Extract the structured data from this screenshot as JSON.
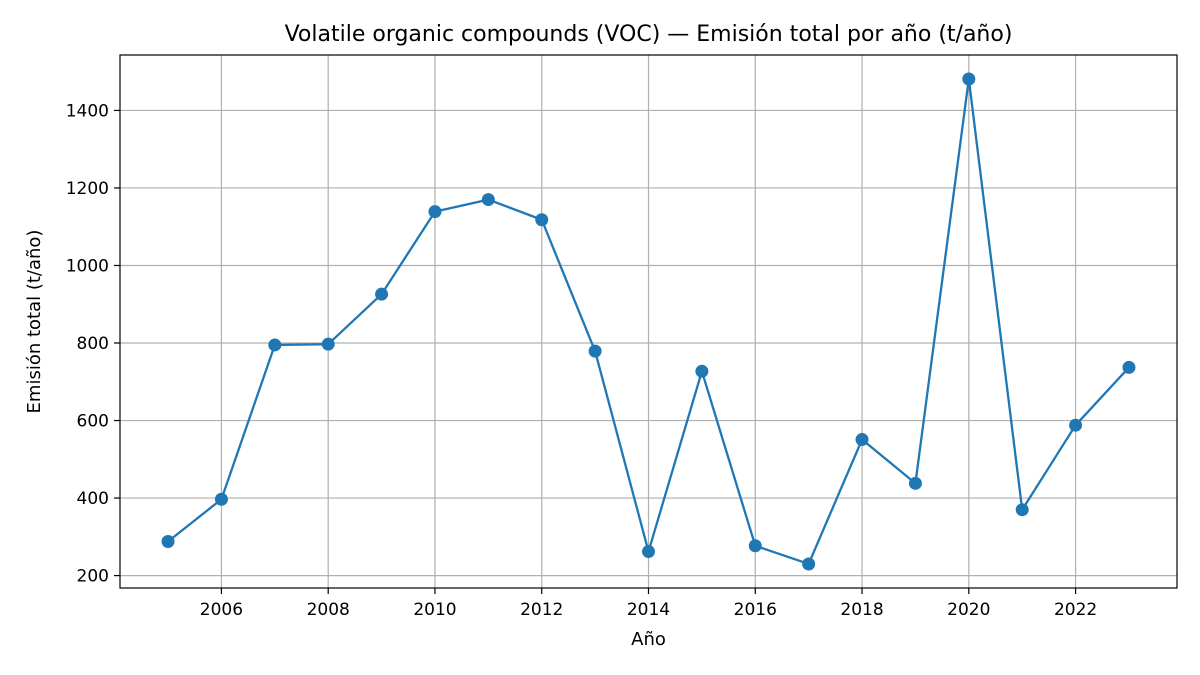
{
  "chart_data": {
    "type": "line",
    "title": "Volatile organic compounds (VOC) — Emisión total por año (t/año)",
    "xlabel": "Año",
    "ylabel": "Emisión total (t/año)",
    "x": [
      2005,
      2006,
      2007,
      2008,
      2009,
      2010,
      2011,
      2012,
      2013,
      2014,
      2015,
      2016,
      2017,
      2018,
      2019,
      2020,
      2021,
      2022,
      2023
    ],
    "series": [
      {
        "values": [
          288,
          397,
          795,
          797,
          926,
          1139,
          1170,
          1118,
          779,
          262,
          727,
          277,
          230,
          551,
          438,
          1481,
          370,
          588,
          737
        ],
        "color": "#1f77b4",
        "marker": "circle"
      }
    ],
    "xticks": [
      "2006",
      "2008",
      "2010",
      "2012",
      "2014",
      "2016",
      "2018",
      "2020",
      "2022"
    ],
    "yticks": [
      "200",
      "400",
      "600",
      "800",
      "1000",
      "1200",
      "1400"
    ],
    "xlim": [
      2004.1,
      2023.9
    ],
    "ylim": [
      168,
      1543
    ],
    "grid": true,
    "grid_color": "#b0b0b0",
    "legend": "none"
  }
}
